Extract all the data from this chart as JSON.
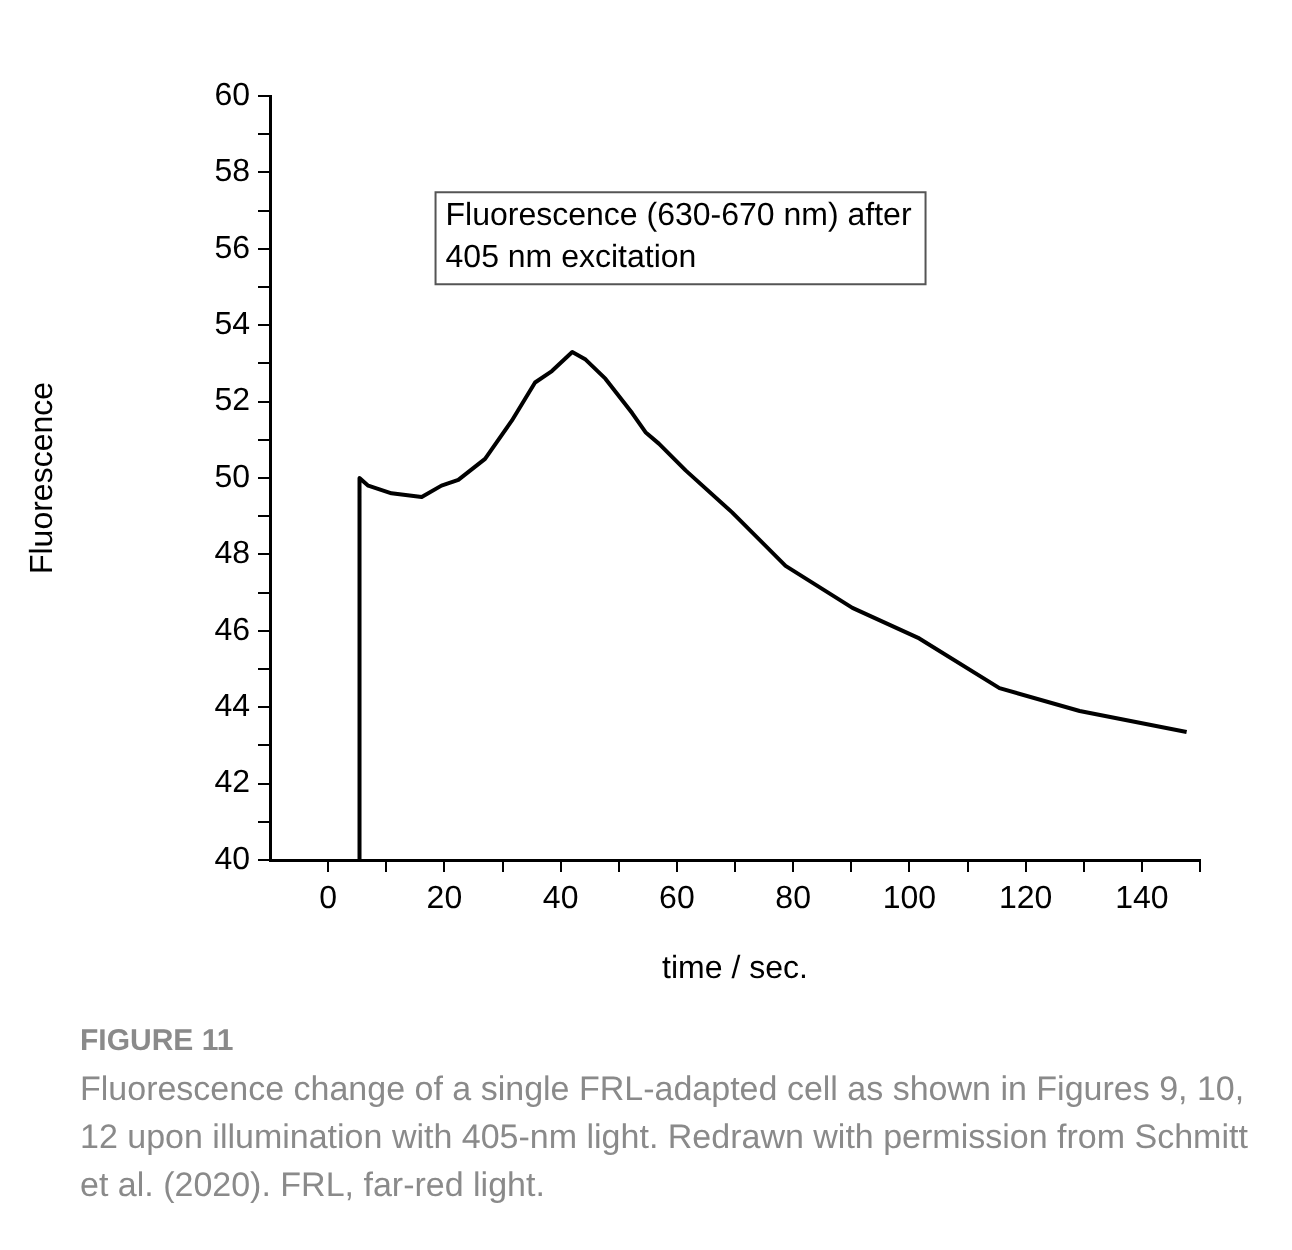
{
  "chart_data": {
    "type": "line",
    "ylabel": "Fluorescence",
    "xlabel": "time / sec.",
    "annotations": [
      "Fluorescence (630-670 nm) after\n405 nm excitation",
      "FIGURE 11",
      "Fluorescence change of a single FRL-adapted cell as shown in Figures 9, 10, 12 upon illumination with 405-nm light. Redrawn with permission from Schmitt et al. (2020). FRL, far-red light."
    ],
    "series": [
      {
        "color": "#000000",
        "x": [
          5.2,
          5.4,
          6.9,
          10.9,
          16.1,
          19.5,
          22.4,
          27,
          31.6,
          35.6,
          38.5,
          42,
          44.3,
          47.7,
          52.3,
          54.6,
          56.9,
          61.5,
          69.5,
          78.7,
          90.2,
          101.7,
          115.5,
          129.3,
          147.7
        ],
        "values": [
          40,
          50,
          49.8,
          49.6,
          49.5,
          49.8,
          49.95,
          50.5,
          51.5,
          52.5,
          52.8,
          53.3,
          53.1,
          52.6,
          51.7,
          51.2,
          50.9,
          50.2,
          49.1,
          47.7,
          46.6,
          45.8,
          44.5,
          43.9,
          43.35
        ]
      }
    ],
    "xlim": [
      -10,
      150
    ],
    "xticks": [
      0,
      {
        "value": 10,
        "label": null
      },
      20,
      {
        "value": 30,
        "label": null
      },
      40,
      {
        "value": 50,
        "label": null
      },
      60,
      {
        "value": 70,
        "label": null
      },
      80,
      {
        "value": 90,
        "label": null
      },
      100,
      {
        "value": 110,
        "label": null
      },
      120,
      {
        "value": 130,
        "label": null
      },
      140,
      {
        "value": 150,
        "label": null
      }
    ],
    "ylim": [
      40,
      60
    ],
    "yticks": [
      40,
      {
        "value": 41,
        "label": null
      },
      42,
      {
        "value": 43,
        "label": null
      },
      44,
      {
        "value": 45,
        "label": null
      },
      46,
      {
        "value": 47,
        "label": null
      },
      48,
      {
        "value": 49,
        "label": null
      },
      50,
      {
        "value": 51,
        "label": null
      },
      52,
      {
        "value": 53,
        "label": null
      },
      54,
      {
        "value": 55,
        "label": null
      },
      56,
      {
        "value": 57,
        "label": null
      },
      58,
      {
        "value": 59,
        "label": null
      },
      60
    ],
    "grid": false,
    "legend": false,
    "marker": "none",
    "line_style": "solid"
  }
}
